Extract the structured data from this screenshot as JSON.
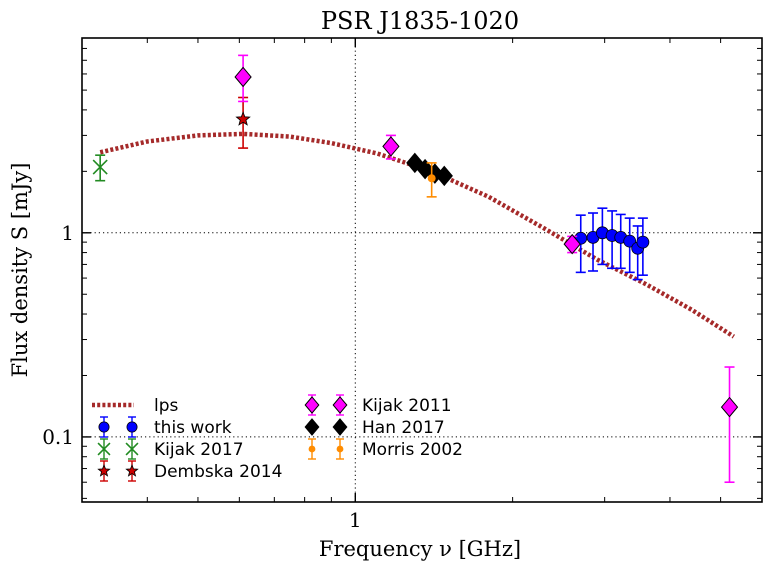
{
  "chart_data": {
    "type": "scatter",
    "title": "PSR J1835-1020",
    "xlabel": "Frequency ν [GHz]",
    "ylabel": "Flux density S [mJy]",
    "xscale": "log",
    "yscale": "log",
    "xlim": [
      0.3,
      6.0
    ],
    "ylim": [
      0.048,
      9.0
    ],
    "x_ticks": [
      {
        "value": 1,
        "label": "1"
      }
    ],
    "y_ticks": [
      {
        "value": 0.1,
        "label": "0.1"
      },
      {
        "value": 1,
        "label": "1"
      }
    ],
    "grid": "dotted at major ticks",
    "legend_position": "lower-left",
    "fit": {
      "name": "lps",
      "color": "#a52a2a",
      "x": [
        0.325,
        0.4,
        0.5,
        0.61,
        0.75,
        0.9,
        1.1,
        1.4,
        1.8,
        2.3,
        2.9,
        3.6,
        4.4,
        5.3
      ],
      "y": [
        2.48,
        2.8,
        3.0,
        3.05,
        2.96,
        2.75,
        2.45,
        2.0,
        1.5,
        1.05,
        0.74,
        0.56,
        0.42,
        0.31
      ]
    },
    "series": [
      {
        "name": "this work",
        "marker": "circle",
        "color": "#0000ff",
        "x": [
          2.7,
          2.85,
          2.97,
          3.1,
          3.22,
          3.35,
          3.47,
          3.55
        ],
        "y": [
          0.94,
          0.95,
          1.0,
          0.97,
          0.95,
          0.91,
          0.84,
          0.9
        ],
        "yerr_low": [
          0.3,
          0.3,
          0.3,
          0.3,
          0.28,
          0.27,
          0.25,
          0.28
        ],
        "yerr_high": [
          0.28,
          0.3,
          0.32,
          0.31,
          0.28,
          0.27,
          0.24,
          0.28
        ]
      },
      {
        "name": "Kijak 2017",
        "marker": "x",
        "color": "#228b22",
        "x": [
          0.325
        ],
        "y": [
          2.1
        ],
        "yerr_low": [
          0.3
        ],
        "yerr_high": [
          0.3
        ]
      },
      {
        "name": "Dembska 2014",
        "marker": "star",
        "color": "#cc0000",
        "x": [
          0.61
        ],
        "y": [
          3.6
        ],
        "yerr_low": [
          1.0
        ],
        "yerr_high": [
          1.0
        ]
      },
      {
        "name": "Kijak 2011",
        "marker": "diamond",
        "color": "#ff00ff",
        "x": [
          0.61,
          1.17,
          2.6,
          5.2
        ],
        "y": [
          5.8,
          2.65,
          0.88,
          0.14
        ],
        "yerr_low": [
          1.4,
          0.35,
          0.08,
          0.08
        ],
        "yerr_high": [
          1.6,
          0.35,
          0.08,
          0.08
        ]
      },
      {
        "name": "Han 2017",
        "marker": "diamond",
        "color": "#000000",
        "x": [
          1.3,
          1.36,
          1.42,
          1.48
        ],
        "y": [
          2.2,
          2.05,
          1.95,
          1.9
        ],
        "yerr_low": [
          0,
          0,
          0,
          0
        ],
        "yerr_high": [
          0,
          0,
          0,
          0
        ]
      },
      {
        "name": "Morris 2002",
        "marker": "circle-small",
        "color": "#ff8c00",
        "x": [
          1.4
        ],
        "y": [
          1.85
        ],
        "yerr_low": [
          0.35
        ],
        "yerr_high": [
          0.35
        ]
      }
    ]
  }
}
